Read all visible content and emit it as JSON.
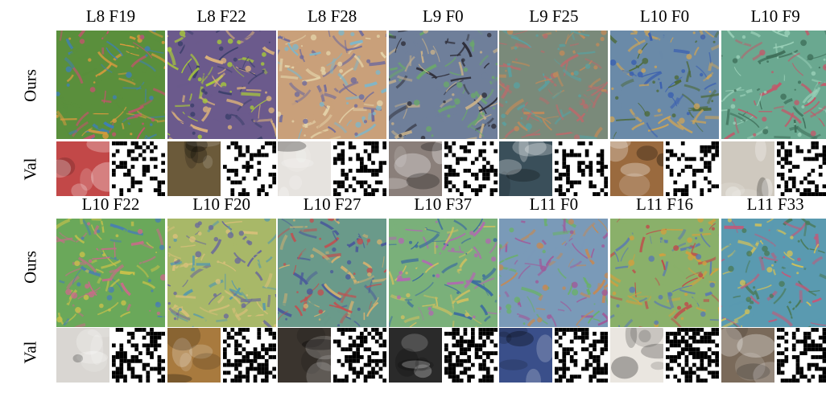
{
  "figure": {
    "row_labels": {
      "ours": "Ours",
      "val": "Val"
    },
    "top_block": {
      "columns": [
        "L8 F19",
        "L8 F22",
        "L8 F28",
        "L9 F0",
        "L9 F25",
        "L10 F0",
        "L10 F9"
      ],
      "palette": [
        [
          "#5a8f3c",
          "#c0556b",
          "#d99a3d",
          "#3e7fb3"
        ],
        [
          "#6b5a8c",
          "#d9b07a",
          "#a8c93a",
          "#3b3f6a"
        ],
        [
          "#c9a07a",
          "#7fb6c9",
          "#e3d2a8",
          "#6f6a9c"
        ],
        [
          "#6f7f9a",
          "#c7b08a",
          "#6aa86a",
          "#2f2f3a"
        ],
        [
          "#7a8a7a",
          "#c08a5a",
          "#5aa0a0",
          "#b86c6c"
        ],
        [
          "#6a8aa8",
          "#c9a35a",
          "#4d6a3a",
          "#3a5fb0"
        ],
        [
          "#6aa890",
          "#c05a6a",
          "#9ad0b8",
          "#3f6f5a"
        ]
      ],
      "val_photos": [
        "#c24848",
        "#6b5a3a",
        "#e6e3df",
        "#8a7f7a",
        "#3a4f5a",
        "#9a6a3e",
        "#cfc9bf"
      ]
    },
    "bottom_block": {
      "columns": [
        "L10 F22",
        "L10 F20",
        "L10 F27",
        "L10 F37",
        "L11 F0",
        "L11 F16",
        "L11 F33"
      ],
      "palette": [
        [
          "#6aa85a",
          "#c96a8a",
          "#c9c14a",
          "#4a7fb0"
        ],
        [
          "#a8b868",
          "#5a9aa8",
          "#d9c07a",
          "#6a6a9a"
        ],
        [
          "#6a9a8a",
          "#c05050",
          "#d0b070",
          "#4a5a9a"
        ],
        [
          "#7ab07a",
          "#b06ab0",
          "#d0c060",
          "#3a6aa0"
        ],
        [
          "#7a9ab8",
          "#c08a5a",
          "#6ab06a",
          "#a05a9a"
        ],
        [
          "#8ab06a",
          "#c04a4a",
          "#d0a040",
          "#5a7ab0"
        ],
        [
          "#5a9ab0",
          "#c05a7a",
          "#d0c05a",
          "#4a7a5a"
        ]
      ],
      "val_photos": [
        "#d9d6d2",
        "#a87a3e",
        "#3a342e",
        "#2a2a2a",
        "#3a4f8a",
        "#eae6e0",
        "#7a6a5a"
      ]
    }
  }
}
